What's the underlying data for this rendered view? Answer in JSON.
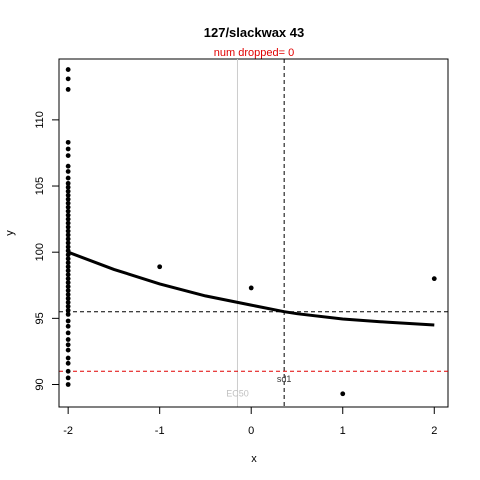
{
  "chart_data": {
    "type": "scatter",
    "title": "127/slackwax 43",
    "subtitle": "num dropped= 0",
    "xlabel": "x",
    "ylabel": "y",
    "xlim": [
      -2.1,
      2.15
    ],
    "ylim": [
      88.3,
      114.6
    ],
    "xticks": [
      -2,
      -1,
      0,
      1,
      2
    ],
    "yticks": [
      90,
      95,
      100,
      105,
      110
    ],
    "grid": false,
    "points": [
      {
        "x": -2,
        "y": 113.8
      },
      {
        "x": -2,
        "y": 113.1
      },
      {
        "x": -2,
        "y": 112.3
      },
      {
        "x": -2,
        "y": 108.3
      },
      {
        "x": -2,
        "y": 107.8
      },
      {
        "x": -2,
        "y": 107.3
      },
      {
        "x": -2,
        "y": 106.5
      },
      {
        "x": -2,
        "y": 106.1
      },
      {
        "x": -2,
        "y": 105.6
      },
      {
        "x": -2,
        "y": 105.2
      },
      {
        "x": -2,
        "y": 104.9
      },
      {
        "x": -2,
        "y": 104.6
      },
      {
        "x": -2,
        "y": 104.3
      },
      {
        "x": -2,
        "y": 104.0
      },
      {
        "x": -2,
        "y": 103.7
      },
      {
        "x": -2,
        "y": 103.4
      },
      {
        "x": -2,
        "y": 103.1
      },
      {
        "x": -2,
        "y": 102.8
      },
      {
        "x": -2,
        "y": 102.5
      },
      {
        "x": -2,
        "y": 102.2
      },
      {
        "x": -2,
        "y": 101.9
      },
      {
        "x": -2,
        "y": 101.6
      },
      {
        "x": -2,
        "y": 101.3
      },
      {
        "x": -2,
        "y": 101.0
      },
      {
        "x": -2,
        "y": 100.7
      },
      {
        "x": -2,
        "y": 100.4
      },
      {
        "x": -2,
        "y": 100.1
      },
      {
        "x": -2,
        "y": 99.8
      },
      {
        "x": -2,
        "y": 99.5
      },
      {
        "x": -2,
        "y": 99.2
      },
      {
        "x": -2,
        "y": 98.9
      },
      {
        "x": -2,
        "y": 98.6
      },
      {
        "x": -2,
        "y": 98.3
      },
      {
        "x": -2,
        "y": 98.0
      },
      {
        "x": -2,
        "y": 97.7
      },
      {
        "x": -2,
        "y": 97.4
      },
      {
        "x": -2,
        "y": 97.1
      },
      {
        "x": -2,
        "y": 96.8
      },
      {
        "x": -2,
        "y": 96.5
      },
      {
        "x": -2,
        "y": 96.2
      },
      {
        "x": -2,
        "y": 95.9
      },
      {
        "x": -2,
        "y": 95.6
      },
      {
        "x": -2,
        "y": 95.3
      },
      {
        "x": -2,
        "y": 94.8
      },
      {
        "x": -2,
        "y": 94.4
      },
      {
        "x": -2,
        "y": 93.9
      },
      {
        "x": -2,
        "y": 93.4
      },
      {
        "x": -2,
        "y": 93.0
      },
      {
        "x": -2,
        "y": 92.6
      },
      {
        "x": -2,
        "y": 92.0
      },
      {
        "x": -2,
        "y": 91.6
      },
      {
        "x": -2,
        "y": 91.0
      },
      {
        "x": -2,
        "y": 90.5
      },
      {
        "x": -2,
        "y": 90.0
      },
      {
        "x": -1,
        "y": 98.9
      },
      {
        "x": 0,
        "y": 97.3
      },
      {
        "x": 1,
        "y": 89.3
      },
      {
        "x": 2,
        "y": 98.0
      }
    ],
    "curve": {
      "x": [
        -2,
        -1.5,
        -1,
        -0.5,
        0,
        0.36,
        0.5,
        1,
        1.5,
        2
      ],
      "y": [
        100.0,
        98.7,
        97.6,
        96.7,
        96.0,
        95.5,
        95.35,
        94.95,
        94.7,
        94.5
      ]
    },
    "hlines": [
      {
        "y": 95.5,
        "color": "#000000",
        "style": "dashed"
      },
      {
        "y": 91.0,
        "color": "#e00000",
        "style": "dashed"
      }
    ],
    "vlines": [
      {
        "x": 0.36,
        "color": "#000000",
        "style": "dashed"
      },
      {
        "x": -0.15,
        "color": "#cccccc",
        "style": "solid"
      }
    ],
    "annotations": [
      {
        "text": "sd1",
        "x": 0.36,
        "y": 90.2,
        "color": "#333333"
      },
      {
        "text": "EC50",
        "x": -0.15,
        "y": 89.1,
        "color": "#c0c0c0"
      }
    ]
  }
}
